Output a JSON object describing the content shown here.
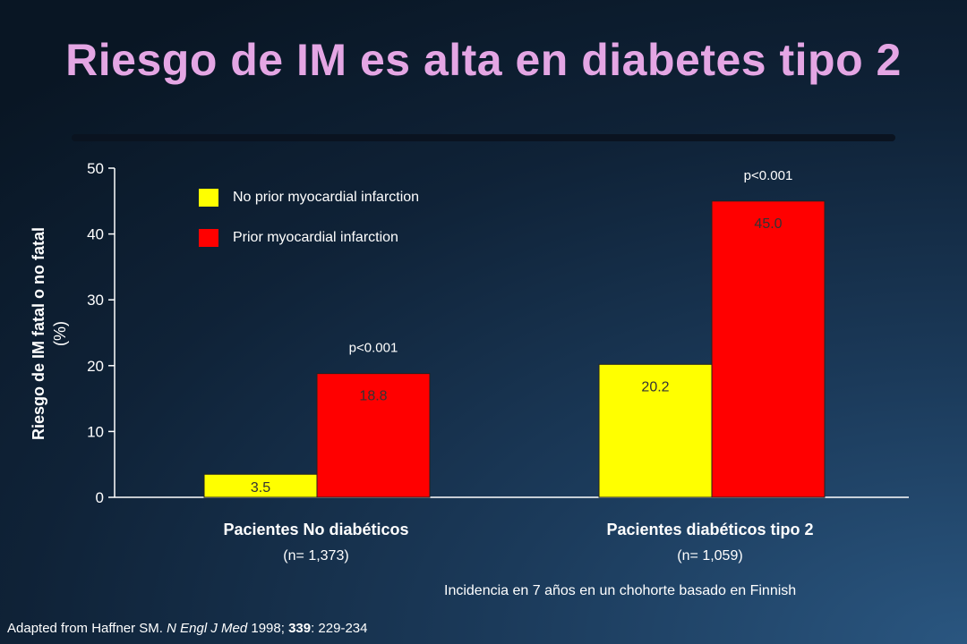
{
  "title": "Riesgo de IM es alta en diabetes tipo 2",
  "chart_data": {
    "type": "bar",
    "ylabel": "Riesgo de IM fatal o no fatal",
    "ylabel_unit": "(%)",
    "ylim": [
      0,
      50
    ],
    "yticks": [
      "0",
      "10",
      "20",
      "30",
      "40",
      "50"
    ],
    "grid": false,
    "legend_position": "top-left",
    "categories": [
      {
        "name": "Pacientes No diabéticos",
        "n": "(n= 1,373)",
        "pvalue": "p<0.001"
      },
      {
        "name": "Pacientes diabéticos tipo 2",
        "n": "(n= 1,059)",
        "pvalue": "p<0.001"
      }
    ],
    "series": [
      {
        "name": "No prior myocardial infarction",
        "color": "#ffff00",
        "values": [
          3.5,
          20.2
        ],
        "labels": [
          "3.5",
          "20.2"
        ]
      },
      {
        "name": "Prior myocardial infarction",
        "color": "#ff0000",
        "values": [
          18.8,
          45.0
        ],
        "labels": [
          "18.8",
          "45.0"
        ]
      }
    ]
  },
  "footnote": "Incidencia en 7 años en un chohorte basado en Finnish",
  "source": {
    "pre": "Adapted from Haffner SM. ",
    "journal": "N Engl J Med",
    "year": " 1998; ",
    "volume": "339",
    "pages": ": 229-234"
  }
}
